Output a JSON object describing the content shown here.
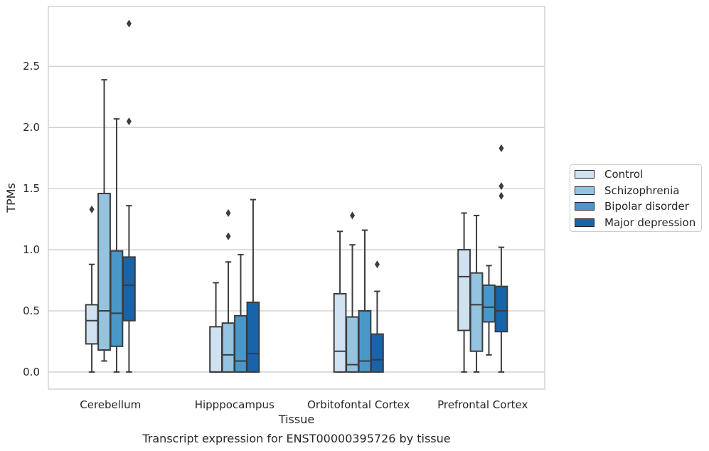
{
  "chart_data": {
    "type": "boxplot",
    "title": "Transcript expression for ENST00000395726 by tissue",
    "xlabel": "Tissue",
    "ylabel": "TPMs",
    "ylim": [
      -0.14,
      2.99
    ],
    "yticks": [
      0.0,
      0.5,
      1.0,
      1.5,
      2.0,
      2.5
    ],
    "ytick_labels": [
      "0.0",
      "0.5",
      "1.0",
      "1.5",
      "2.0",
      "2.5"
    ],
    "grid": "horizontal",
    "legend_position": "right, outside",
    "categories": [
      "Cerebellum",
      "Hipppocampus",
      "Orbitofontal Cortex",
      "Prefrontal Cortex"
    ],
    "series": [
      {
        "name": "Control",
        "color": "#d0e1f2",
        "boxes": [
          {
            "min": 0.0,
            "q1": 0.23,
            "median": 0.42,
            "q3": 0.55,
            "max": 0.88,
            "outliers": [
              1.33
            ]
          },
          {
            "min": 0.0,
            "q1": 0.0,
            "median": 0.0,
            "q3": 0.37,
            "max": 0.73,
            "outliers": []
          },
          {
            "min": 0.0,
            "q1": 0.0,
            "median": 0.17,
            "q3": 0.64,
            "max": 1.15,
            "outliers": []
          },
          {
            "min": 0.0,
            "q1": 0.34,
            "median": 0.78,
            "q3": 1.0,
            "max": 1.3,
            "outliers": []
          }
        ]
      },
      {
        "name": "Schizophrenia",
        "color": "#94c4df",
        "boxes": [
          {
            "min": 0.09,
            "q1": 0.18,
            "median": 0.5,
            "q3": 1.46,
            "max": 2.39,
            "outliers": []
          },
          {
            "min": 0.0,
            "q1": 0.0,
            "median": 0.14,
            "q3": 0.4,
            "max": 0.9,
            "outliers": [
              1.11,
              1.3
            ]
          },
          {
            "min": 0.0,
            "q1": 0.0,
            "median": 0.06,
            "q3": 0.45,
            "max": 1.04,
            "outliers": [
              1.28
            ]
          },
          {
            "min": 0.0,
            "q1": 0.17,
            "median": 0.55,
            "q3": 0.81,
            "max": 1.28,
            "outliers": []
          }
        ]
      },
      {
        "name": "Bipolar disorder",
        "color": "#4a98c9",
        "boxes": [
          {
            "min": 0.0,
            "q1": 0.21,
            "median": 0.48,
            "q3": 0.99,
            "max": 2.07,
            "outliers": []
          },
          {
            "min": 0.0,
            "q1": 0.0,
            "median": 0.09,
            "q3": 0.46,
            "max": 0.96,
            "outliers": []
          },
          {
            "min": 0.0,
            "q1": 0.0,
            "median": 0.09,
            "q3": 0.5,
            "max": 1.16,
            "outliers": []
          },
          {
            "min": 0.14,
            "q1": 0.41,
            "median": 0.53,
            "q3": 0.71,
            "max": 0.87,
            "outliers": []
          }
        ]
      },
      {
        "name": "Major depression",
        "color": "#1764ab",
        "boxes": [
          {
            "min": 0.0,
            "q1": 0.42,
            "median": 0.71,
            "q3": 0.94,
            "max": 1.36,
            "outliers": [
              2.05,
              2.85
            ]
          },
          {
            "min": 0.0,
            "q1": 0.0,
            "median": 0.15,
            "q3": 0.57,
            "max": 1.41,
            "outliers": []
          },
          {
            "min": 0.0,
            "q1": 0.0,
            "median": 0.1,
            "q3": 0.31,
            "max": 0.66,
            "outliers": [
              0.88
            ]
          },
          {
            "min": 0.0,
            "q1": 0.33,
            "median": 0.5,
            "q3": 0.7,
            "max": 1.02,
            "outliers": [
              1.44,
              1.52,
              1.83
            ]
          }
        ]
      }
    ]
  }
}
